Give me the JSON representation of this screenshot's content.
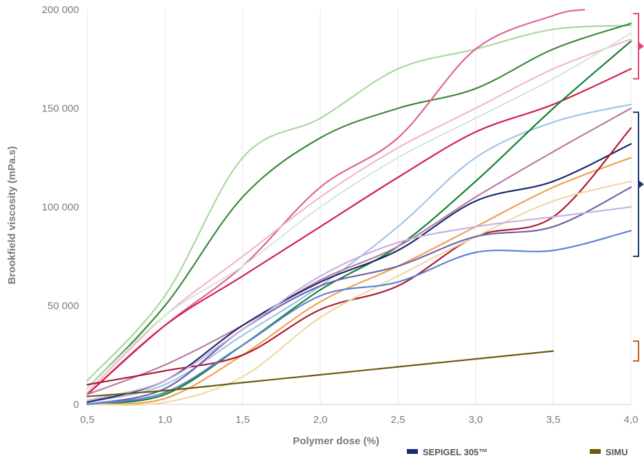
{
  "chart_data": {
    "type": "line",
    "title": "",
    "xlabel": "Polymer dose (%)",
    "ylabel": "Brookfield viscosity (mPa.s)",
    "xlim": [
      0.5,
      4.0
    ],
    "ylim": [
      0,
      200000
    ],
    "x_ticks": [
      "0,5",
      "1,0",
      "1,5",
      "2,0",
      "2,5",
      "3,0",
      "3,5",
      "4,0"
    ],
    "y_ticks": [
      "0",
      "50 000",
      "100 000",
      "150 000",
      "200 000"
    ],
    "grid": "vertical",
    "legend_visible": [
      {
        "label": "SEPIGEL 305™",
        "color": "#1a2a6c"
      },
      {
        "label": "SIMU",
        "color": "#6b5a10"
      }
    ],
    "brackets": [
      {
        "color": "#e8436a",
        "from": 165000,
        "to": 198000
      },
      {
        "color": "#1f3a6e",
        "from": 75000,
        "to": 148000
      },
      {
        "color": "#b8642a",
        "from": 22000,
        "to": 32000
      }
    ],
    "series": [
      {
        "color": "#a8d8a0",
        "x": [
          0.5,
          1.0,
          1.5,
          2.0,
          2.5,
          3.0,
          3.5,
          4.0
        ],
        "y": [
          12000,
          55000,
          125000,
          145000,
          170000,
          180000,
          190000,
          192000
        ]
      },
      {
        "color": "#3a8a3a",
        "x": [
          0.5,
          1.0,
          1.5,
          2.0,
          2.5,
          3.0,
          3.5,
          4.0
        ],
        "y": [
          8000,
          50000,
          105000,
          135000,
          150000,
          160000,
          180000,
          193000
        ]
      },
      {
        "color": "#e0609a",
        "x": [
          0.5,
          1.0,
          1.5,
          2.0,
          2.5,
          3.0,
          3.5,
          3.7
        ],
        "y": [
          5000,
          40000,
          70000,
          110000,
          135000,
          180000,
          197000,
          200000
        ]
      },
      {
        "color": "#f0b8c8",
        "x": [
          0.5,
          1.0,
          1.5,
          2.0,
          2.5,
          3.0,
          3.5,
          4.0
        ],
        "y": [
          6000,
          45000,
          75000,
          105000,
          130000,
          150000,
          170000,
          185000
        ]
      },
      {
        "color": "#d8e8d8",
        "x": [
          0.5,
          1.0,
          1.5,
          2.0,
          2.5,
          3.0,
          3.5,
          4.0
        ],
        "y": [
          8000,
          45000,
          70000,
          100000,
          125000,
          145000,
          165000,
          188000
        ]
      },
      {
        "color": "#d0204a",
        "x": [
          0.5,
          1.0,
          1.5,
          2.0,
          2.5,
          3.0,
          3.5,
          4.0
        ],
        "y": [
          5000,
          40000,
          65000,
          90000,
          115000,
          138000,
          152000,
          170000
        ]
      },
      {
        "color": "#a0c4e8",
        "x": [
          0.5,
          1.0,
          1.5,
          2.0,
          2.5,
          3.0,
          3.5,
          4.0
        ],
        "y": [
          1000,
          10000,
          35000,
          60000,
          90000,
          125000,
          143000,
          152000
        ]
      },
      {
        "color": "#108030",
        "x": [
          0.5,
          1.0,
          1.5,
          2.0,
          2.5,
          3.0,
          3.5,
          4.0
        ],
        "y": [
          0,
          5000,
          30000,
          58000,
          80000,
          113000,
          150000,
          184000
        ]
      },
      {
        "color": "#b87aa0",
        "x": [
          0.5,
          1.0,
          1.5,
          2.0,
          2.5,
          3.0,
          3.5,
          4.0
        ],
        "y": [
          5000,
          20000,
          40000,
          63000,
          80000,
          105000,
          128000,
          150000
        ]
      },
      {
        "color": "#1a2a6c",
        "x": [
          0.5,
          1.0,
          1.5,
          2.0,
          2.5,
          3.0,
          3.5,
          4.0
        ],
        "y": [
          1000,
          12000,
          40000,
          62000,
          78000,
          103000,
          113000,
          132000
        ]
      },
      {
        "color": "#f0a050",
        "x": [
          0.5,
          1.0,
          1.5,
          2.0,
          2.5,
          3.0,
          3.5,
          4.0
        ],
        "y": [
          0,
          3000,
          25000,
          52000,
          70000,
          90000,
          110000,
          125000
        ]
      },
      {
        "color": "#b01830",
        "x": [
          0.5,
          1.0,
          1.5,
          2.0,
          2.5,
          3.0,
          3.5,
          4.0
        ],
        "y": [
          10000,
          17000,
          25000,
          48000,
          60000,
          85000,
          95000,
          140000
        ]
      },
      {
        "color": "#f0d8a8",
        "x": [
          0.5,
          1.0,
          1.5,
          2.0,
          2.5,
          3.0,
          3.5,
          4.0
        ],
        "y": [
          0,
          1000,
          14000,
          44000,
          65000,
          85000,
          103000,
          113000
        ]
      },
      {
        "color": "#7060a8",
        "x": [
          0.5,
          1.0,
          1.5,
          2.0,
          2.5,
          3.0,
          3.5,
          4.0
        ],
        "y": [
          0,
          8000,
          38000,
          60000,
          70000,
          85000,
          90000,
          110000
        ]
      },
      {
        "color": "#c8b0e0",
        "x": [
          0.5,
          1.0,
          1.5,
          2.0,
          2.5,
          3.0,
          3.5,
          4.0
        ],
        "y": [
          2000,
          12000,
          38000,
          65000,
          82000,
          90000,
          95000,
          100000
        ]
      },
      {
        "color": "#5a84d0",
        "x": [
          0.5,
          1.0,
          1.5,
          2.0,
          2.5,
          3.0,
          3.5,
          4.0
        ],
        "y": [
          0,
          6000,
          30000,
          55000,
          62000,
          77000,
          78000,
          88000
        ]
      },
      {
        "color": "#6b5a10",
        "x": [
          0.5,
          1.0,
          1.5,
          2.0,
          2.5,
          3.0,
          3.5
        ],
        "y": [
          4000,
          7000,
          11000,
          15000,
          19000,
          23000,
          27000
        ]
      }
    ]
  }
}
